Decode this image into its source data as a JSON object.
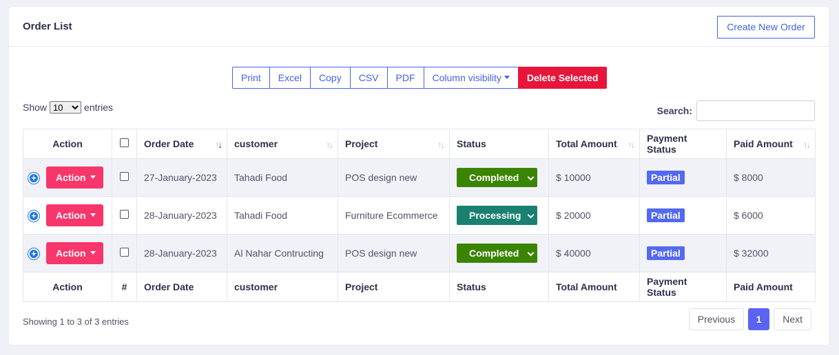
{
  "header": {
    "title": "Order List",
    "create_label": "Create New Order"
  },
  "toolbar": {
    "print": "Print",
    "excel": "Excel",
    "copy": "Copy",
    "csv": "CSV",
    "pdf": "PDF",
    "column_visibility": "Column visibility",
    "delete_selected": "Delete Selected"
  },
  "length": {
    "show": "Show",
    "selected": "10",
    "entries": "entries"
  },
  "search": {
    "label": "Search:",
    "value": ""
  },
  "table": {
    "headers": {
      "action": "Action",
      "order_date": "Order Date",
      "customer": "customer",
      "project": "Project",
      "status": "Status",
      "total": "Total Amount",
      "payment_status": "Payment Status",
      "paid": "Paid Amount"
    },
    "footer_hash": "#",
    "rows": [
      {
        "action": "Action",
        "date": "27-January-2023",
        "customer": "Tahadi Food",
        "project": "POS design new",
        "status": "Completed",
        "total": "$ 10000",
        "payment": "Partial",
        "paid": "$ 8000"
      },
      {
        "action": "Action",
        "date": "28-January-2023",
        "customer": "Tahadi Food",
        "project": "Furniture Ecommerce",
        "status": "Processing",
        "total": "$ 20000",
        "payment": "Partial",
        "paid": "$ 6000"
      },
      {
        "action": "Action",
        "date": "28-January-2023",
        "customer": "Al Nahar Contructing",
        "project": "POS design new",
        "status": "Completed",
        "total": "$ 40000",
        "payment": "Partial",
        "paid": "$ 32000"
      }
    ]
  },
  "info": "Showing 1 to 3 of 3 entries",
  "pagination": {
    "previous": "Previous",
    "current": "1",
    "next": "Next"
  },
  "colors": {
    "accent": "#4361ee",
    "danger": "#e7153a",
    "action_pink": "#f7366b",
    "completed": "#3a8500",
    "processing": "#1a8071",
    "badge": "#5469f1"
  }
}
